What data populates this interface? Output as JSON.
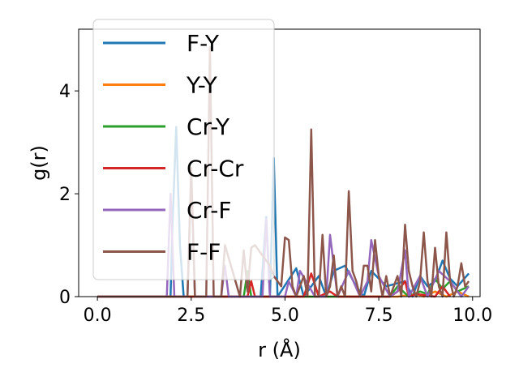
{
  "chart_data": {
    "type": "line",
    "title": "",
    "xlabel": "r (Å)",
    "ylabel": "g(r)",
    "xlim": [
      -0.5,
      10.2
    ],
    "ylim": [
      0,
      5.2
    ],
    "xticks": [
      "0.0",
      "2.5",
      "5.0",
      "7.5",
      "10.0"
    ],
    "yticks": [
      "0",
      "2",
      "4"
    ],
    "grid": false,
    "legend_position": "top-left",
    "series": [
      {
        "name": "F-Y",
        "color": "#1f77b4",
        "x": [
          0.0,
          1.8,
          1.95,
          2.0,
          2.1,
          2.2,
          2.3,
          4.35,
          4.5,
          4.6,
          4.7,
          4.8,
          5.3,
          5.5,
          5.9,
          6.1,
          6.3,
          6.6,
          6.9,
          7.1,
          7.3,
          7.7,
          8.2,
          8.4,
          8.6,
          8.8,
          9.0,
          9.2,
          9.4,
          9.6,
          9.9
        ],
        "y": [
          0.0,
          0.0,
          0.0,
          1.4,
          3.3,
          1.0,
          0.0,
          0.0,
          1.55,
          0.0,
          2.7,
          0.0,
          0.55,
          0.0,
          0.4,
          0.0,
          0.5,
          0.6,
          0.2,
          0.0,
          0.5,
          0.2,
          0.3,
          0.0,
          0.4,
          0.2,
          0.3,
          0.7,
          0.35,
          0.2,
          0.45
        ]
      },
      {
        "name": "Y-Y",
        "color": "#ff7f0e",
        "x": [
          0.0,
          8.0,
          8.5,
          8.7,
          9.0,
          9.3,
          9.6,
          9.9
        ],
        "y": [
          0.0,
          0.0,
          0.05,
          0.0,
          0.1,
          0.0,
          0.1,
          0.0
        ]
      },
      {
        "name": "Cr-Y",
        "color": "#2ca02c",
        "x": [
          0.0,
          3.9,
          4.0,
          4.1,
          7.8,
          8.0,
          8.3,
          8.6,
          8.8,
          9.0,
          9.2,
          9.4,
          9.6,
          9.9
        ],
        "y": [
          0.0,
          0.0,
          0.5,
          0.0,
          0.0,
          0.2,
          0.0,
          0.1,
          0.05,
          0.35,
          0.15,
          0.3,
          0.1,
          0.2
        ]
      },
      {
        "name": "Cr-Cr",
        "color": "#d62728",
        "x": [
          0.0,
          4.0,
          4.1,
          4.2,
          5.5,
          5.7,
          5.9,
          6.2,
          6.4,
          7.8,
          8.0,
          8.2,
          8.3,
          8.5,
          9.0,
          9.2,
          9.4
        ],
        "y": [
          0.0,
          0.0,
          0.3,
          0.0,
          0.0,
          0.45,
          0.0,
          0.1,
          0.0,
          0.0,
          0.1,
          0.3,
          0.0,
          0.05,
          0.0,
          0.2,
          0.0
        ]
      },
      {
        "name": "Cr-F",
        "color": "#9467bd",
        "x": [
          0.0,
          1.85,
          1.95,
          2.05,
          2.4,
          2.5,
          2.6,
          3.3,
          3.4,
          3.5,
          4.4,
          4.5,
          4.6,
          5.0,
          5.1,
          5.3,
          5.4,
          5.8,
          6.1,
          6.2,
          6.4,
          6.7,
          7.0,
          7.2,
          7.3,
          7.5,
          7.8,
          8.0,
          8.2,
          8.3,
          8.6,
          8.8,
          9.1,
          9.4,
          9.7,
          9.9
        ],
        "y": [
          0.0,
          0.0,
          2.0,
          0.0,
          0.0,
          2.4,
          0.0,
          0.0,
          0.6,
          0.0,
          0.0,
          1.5,
          0.0,
          0.0,
          0.3,
          0.0,
          0.5,
          0.0,
          0.0,
          1.2,
          0.0,
          0.5,
          0.0,
          0.3,
          1.1,
          0.4,
          0.0,
          0.1,
          0.9,
          0.0,
          0.4,
          0.0,
          0.5,
          0.3,
          0.0,
          0.2
        ]
      },
      {
        "name": "F-F",
        "color": "#8c564b",
        "x": [
          0.0,
          2.4,
          2.5,
          2.6,
          2.9,
          3.0,
          3.1,
          3.3,
          3.4,
          3.8,
          3.9,
          4.0,
          4.1,
          4.2,
          4.4,
          4.6,
          4.7,
          4.8,
          4.9,
          5.0,
          5.1,
          5.2,
          5.3,
          5.5,
          5.6,
          5.7,
          5.8,
          5.9,
          6.0,
          6.1,
          6.2,
          6.3,
          6.4,
          6.5,
          6.6,
          6.7,
          6.8,
          6.9,
          7.0,
          7.1,
          7.2,
          7.3,
          7.4,
          7.5,
          7.6,
          7.7,
          7.8,
          7.9,
          8.0,
          8.1,
          8.2,
          8.3,
          8.4,
          8.5,
          8.6,
          8.7,
          8.8,
          8.9,
          9.0,
          9.1,
          9.2,
          9.3,
          9.4,
          9.5,
          9.6,
          9.7,
          9.8,
          9.9
        ],
        "y": [
          0.0,
          0.0,
          2.5,
          0.0,
          0.0,
          4.85,
          0.0,
          0.0,
          1.0,
          0.0,
          0.9,
          0.1,
          0.95,
          1.0,
          0.8,
          0.6,
          0.4,
          0.3,
          0.2,
          1.15,
          1.1,
          0.2,
          0.0,
          0.4,
          0.0,
          3.25,
          0.0,
          0.0,
          1.2,
          0.0,
          0.2,
          0.8,
          0.0,
          0.2,
          0.0,
          2.05,
          0.5,
          0.3,
          0.0,
          0.6,
          0.6,
          0.1,
          1.1,
          0.4,
          0.0,
          0.4,
          0.0,
          0.2,
          0.4,
          0.0,
          1.4,
          0.5,
          0.2,
          0.0,
          0.3,
          1.25,
          0.3,
          0.0,
          0.95,
          0.2,
          0.0,
          1.25,
          0.3,
          0.0,
          0.2,
          0.65,
          0.2,
          0.3
        ]
      }
    ]
  }
}
